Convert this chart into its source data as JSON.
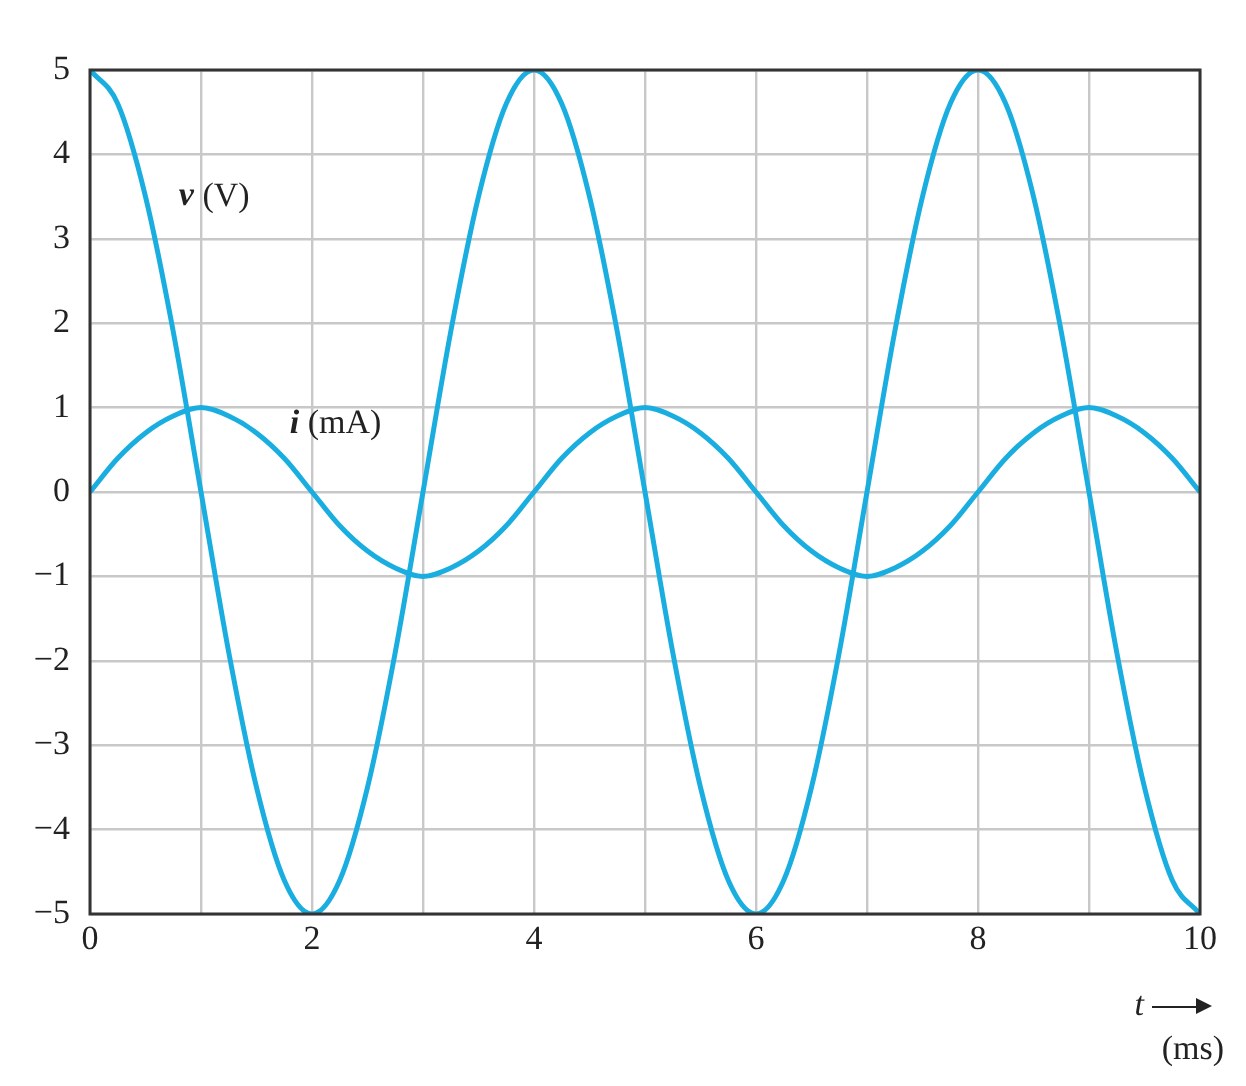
{
  "chart_data": {
    "type": "line",
    "xlabel": "t (ms)",
    "x": [
      0,
      0.25,
      0.5,
      0.75,
      1,
      1.25,
      1.5,
      1.75,
      2,
      2.25,
      2.5,
      2.75,
      3,
      3.25,
      3.5,
      3.75,
      4,
      4.25,
      4.5,
      4.75,
      5,
      5.25,
      5.5,
      5.75,
      6,
      6.25,
      6.5,
      6.75,
      7,
      7.25,
      7.5,
      7.75,
      8,
      8.25,
      8.5,
      8.75,
      9,
      9.25,
      9.5,
      9.75,
      10
    ],
    "series": [
      {
        "name": "v (V)",
        "color": "#1aaee0",
        "values": [
          5,
          4.6,
          3.5,
          1.9,
          0,
          -1.9,
          -3.5,
          -4.6,
          -5,
          -4.6,
          -3.5,
          -1.9,
          0,
          1.9,
          3.5,
          4.6,
          5,
          4.6,
          3.5,
          1.9,
          0,
          -1.9,
          -3.5,
          -4.6,
          -5,
          -4.6,
          -3.5,
          -1.9,
          0,
          1.9,
          3.5,
          4.6,
          5,
          4.6,
          3.5,
          1.9,
          0,
          -1.9,
          -3.5,
          -4.6,
          -5
        ]
      },
      {
        "name": "i (mA)",
        "color": "#1aaee0",
        "values": [
          0,
          0.4,
          0.7,
          0.9,
          1,
          0.9,
          0.7,
          0.4,
          0,
          -0.4,
          -0.7,
          -0.9,
          -1,
          -0.9,
          -0.7,
          -0.4,
          0,
          0.4,
          0.7,
          0.9,
          1,
          0.9,
          0.7,
          0.4,
          0,
          -0.4,
          -0.7,
          -0.9,
          -1,
          -0.9,
          -0.7,
          -0.4,
          0,
          0.4,
          0.7,
          0.9,
          1,
          0.9,
          0.7,
          0.4,
          0
        ]
      }
    ],
    "xlim": [
      0,
      10
    ],
    "xticks": [
      0,
      {
        "value": 1,
        "label": null
      },
      2,
      {
        "value": 3,
        "label": null
      },
      4,
      {
        "value": 5,
        "label": null
      },
      6,
      {
        "value": 7,
        "label": null
      },
      8,
      {
        "value": 9,
        "label": null
      },
      10
    ],
    "ylim": [
      -5,
      5
    ],
    "yticks": [
      -5,
      -4,
      -3,
      -2,
      -1,
      0,
      1,
      2,
      3,
      4,
      5
    ],
    "grid": true,
    "legend": false,
    "marker": "none",
    "line_style": "solid"
  }
}
